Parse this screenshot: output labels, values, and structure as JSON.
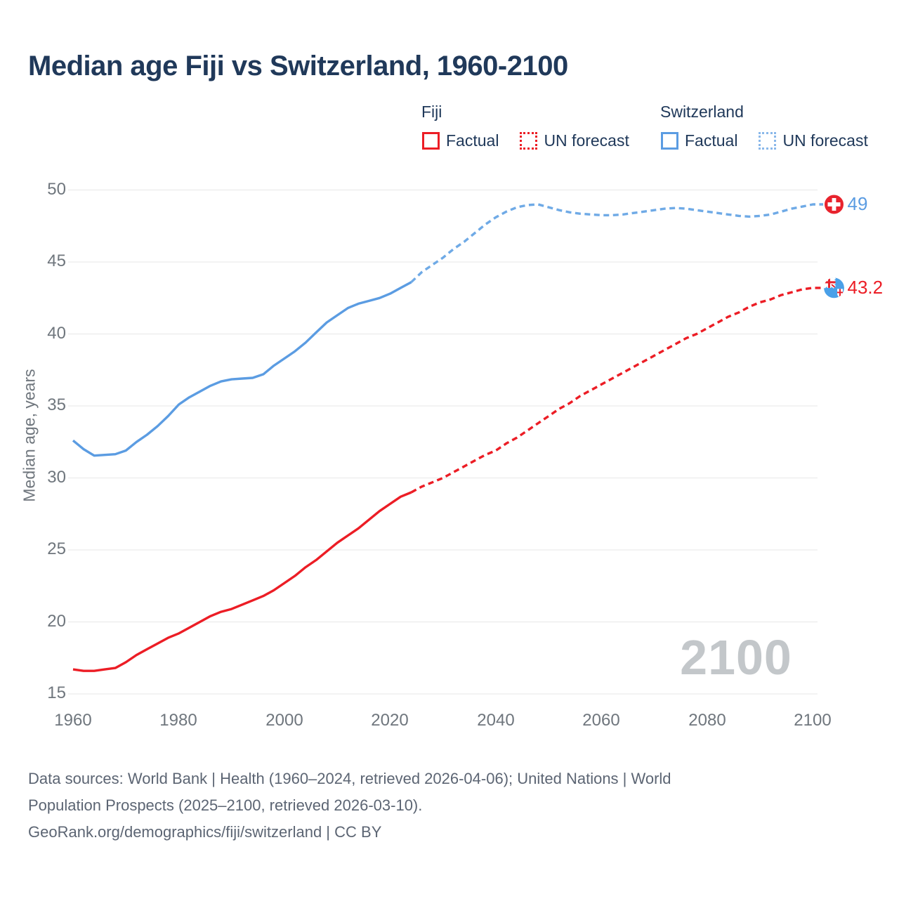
{
  "title": "Median age Fiji vs Switzerland, 1960-2100",
  "watermark": "2100",
  "ylabel": "Median age, years",
  "legend": {
    "fiji": {
      "label": "Fiji",
      "factual": "Factual",
      "forecast": "UN forecast"
    },
    "switzerland": {
      "label": "Switzerland",
      "factual": "Factual",
      "forecast": "UN forecast"
    }
  },
  "end_labels": {
    "switzerland": "49",
    "fiji": "43.2"
  },
  "icons": {
    "switzerland": "switzerland-flag-icon",
    "fiji": "fiji-flag-icon"
  },
  "footer": {
    "line1": "Data sources: World Bank | Health (1960–2024, retrieved 2026-04-06); United Nations | World",
    "line2": "Population Prospects (2025–2100, retrieved 2026-03-10).",
    "line3": "GeoRank.org/demographics/fiji/switzerland | CC BY"
  },
  "colors": {
    "fiji_line": "#ec1d25",
    "switzerland_line": "#5b9ce2",
    "switzerland_forecast_line": "#6faae6",
    "grid": "#ececec",
    "title_text": "#20395a",
    "axis_text": "#6f767d",
    "footer_text": "#5c6573",
    "watermark_text": "#c3c7ca",
    "swiss_flag_red": "#e8232d",
    "fiji_flag_blue": "#4aa0e8"
  },
  "chart_data": {
    "type": "line",
    "title": "Median age Fiji vs Switzerland, 1960-2100",
    "xlabel": "",
    "ylabel": "Median age, years",
    "xlim": [
      1958,
      2112
    ],
    "ylim": [
      15,
      50
    ],
    "x_ticks": [
      1960,
      1980,
      2000,
      2020,
      2040,
      2060,
      2080,
      2100
    ],
    "y_ticks": [
      15,
      20,
      25,
      30,
      35,
      40,
      45,
      50
    ],
    "grid": "horizontal",
    "legend_position": "top-right",
    "series": [
      {
        "name": "Switzerland — Factual",
        "style": "solid",
        "color": "#5b9ce2",
        "points": [
          [
            1960,
            32.6
          ],
          [
            1962,
            32.0
          ],
          [
            1964,
            31.55
          ],
          [
            1966,
            31.6
          ],
          [
            1968,
            31.65
          ],
          [
            1970,
            31.9
          ],
          [
            1972,
            32.5
          ],
          [
            1974,
            33.0
          ],
          [
            1976,
            33.6
          ],
          [
            1978,
            34.3
          ],
          [
            1980,
            35.1
          ],
          [
            1982,
            35.6
          ],
          [
            1984,
            36.0
          ],
          [
            1986,
            36.4
          ],
          [
            1988,
            36.7
          ],
          [
            1990,
            36.85
          ],
          [
            1992,
            36.9
          ],
          [
            1994,
            36.95
          ],
          [
            1996,
            37.2
          ],
          [
            1998,
            37.8
          ],
          [
            2000,
            38.3
          ],
          [
            2002,
            38.8
          ],
          [
            2004,
            39.4
          ],
          [
            2006,
            40.1
          ],
          [
            2008,
            40.8
          ],
          [
            2010,
            41.3
          ],
          [
            2012,
            41.8
          ],
          [
            2014,
            42.1
          ],
          [
            2016,
            42.3
          ],
          [
            2018,
            42.5
          ],
          [
            2020,
            42.8
          ],
          [
            2022,
            43.2
          ],
          [
            2024,
            43.6
          ]
        ]
      },
      {
        "name": "Switzerland — UN forecast",
        "style": "dashed",
        "color": "#6faae6",
        "end_label": "49",
        "points": [
          [
            2024,
            43.6
          ],
          [
            2026,
            44.3
          ],
          [
            2028,
            44.8
          ],
          [
            2030,
            45.3
          ],
          [
            2032,
            45.9
          ],
          [
            2034,
            46.4
          ],
          [
            2036,
            47.0
          ],
          [
            2038,
            47.6
          ],
          [
            2040,
            48.1
          ],
          [
            2042,
            48.5
          ],
          [
            2044,
            48.8
          ],
          [
            2046,
            48.95
          ],
          [
            2048,
            49.0
          ],
          [
            2050,
            48.8
          ],
          [
            2052,
            48.6
          ],
          [
            2054,
            48.45
          ],
          [
            2056,
            48.35
          ],
          [
            2058,
            48.3
          ],
          [
            2060,
            48.25
          ],
          [
            2062,
            48.25
          ],
          [
            2064,
            48.3
          ],
          [
            2066,
            48.4
          ],
          [
            2068,
            48.5
          ],
          [
            2070,
            48.6
          ],
          [
            2072,
            48.7
          ],
          [
            2074,
            48.75
          ],
          [
            2076,
            48.7
          ],
          [
            2078,
            48.6
          ],
          [
            2080,
            48.5
          ],
          [
            2082,
            48.4
          ],
          [
            2084,
            48.3
          ],
          [
            2086,
            48.2
          ],
          [
            2088,
            48.15
          ],
          [
            2090,
            48.2
          ],
          [
            2092,
            48.3
          ],
          [
            2094,
            48.5
          ],
          [
            2096,
            48.7
          ],
          [
            2098,
            48.85
          ],
          [
            2100,
            49.0
          ]
        ]
      },
      {
        "name": "Fiji — Factual",
        "style": "solid",
        "color": "#ec1d25",
        "points": [
          [
            1960,
            16.7
          ],
          [
            1962,
            16.6
          ],
          [
            1964,
            16.6
          ],
          [
            1966,
            16.7
          ],
          [
            1968,
            16.8
          ],
          [
            1970,
            17.2
          ],
          [
            1972,
            17.7
          ],
          [
            1974,
            18.1
          ],
          [
            1976,
            18.5
          ],
          [
            1978,
            18.9
          ],
          [
            1980,
            19.2
          ],
          [
            1982,
            19.6
          ],
          [
            1984,
            20.0
          ],
          [
            1986,
            20.4
          ],
          [
            1988,
            20.7
          ],
          [
            1990,
            20.9
          ],
          [
            1992,
            21.2
          ],
          [
            1994,
            21.5
          ],
          [
            1996,
            21.8
          ],
          [
            1998,
            22.2
          ],
          [
            2000,
            22.7
          ],
          [
            2002,
            23.2
          ],
          [
            2004,
            23.8
          ],
          [
            2006,
            24.3
          ],
          [
            2008,
            24.9
          ],
          [
            2010,
            25.5
          ],
          [
            2012,
            26.0
          ],
          [
            2014,
            26.5
          ],
          [
            2016,
            27.1
          ],
          [
            2018,
            27.7
          ],
          [
            2020,
            28.2
          ],
          [
            2022,
            28.7
          ],
          [
            2024,
            29.0
          ]
        ]
      },
      {
        "name": "Fiji — UN forecast",
        "style": "dashed",
        "color": "#ec1d25",
        "end_label": "43.2",
        "points": [
          [
            2024,
            29.0
          ],
          [
            2026,
            29.4
          ],
          [
            2028,
            29.7
          ],
          [
            2030,
            30.0
          ],
          [
            2032,
            30.4
          ],
          [
            2034,
            30.8
          ],
          [
            2036,
            31.2
          ],
          [
            2038,
            31.6
          ],
          [
            2040,
            31.9
          ],
          [
            2042,
            32.4
          ],
          [
            2044,
            32.8
          ],
          [
            2046,
            33.3
          ],
          [
            2048,
            33.8
          ],
          [
            2050,
            34.3
          ],
          [
            2052,
            34.8
          ],
          [
            2054,
            35.2
          ],
          [
            2056,
            35.7
          ],
          [
            2058,
            36.1
          ],
          [
            2060,
            36.5
          ],
          [
            2062,
            36.9
          ],
          [
            2064,
            37.3
          ],
          [
            2066,
            37.7
          ],
          [
            2068,
            38.1
          ],
          [
            2070,
            38.5
          ],
          [
            2072,
            38.9
          ],
          [
            2074,
            39.3
          ],
          [
            2076,
            39.7
          ],
          [
            2078,
            40.0
          ],
          [
            2080,
            40.4
          ],
          [
            2082,
            40.8
          ],
          [
            2084,
            41.2
          ],
          [
            2086,
            41.5
          ],
          [
            2088,
            41.9
          ],
          [
            2090,
            42.2
          ],
          [
            2092,
            42.4
          ],
          [
            2094,
            42.7
          ],
          [
            2096,
            42.9
          ],
          [
            2098,
            43.1
          ],
          [
            2100,
            43.2
          ]
        ]
      }
    ]
  }
}
